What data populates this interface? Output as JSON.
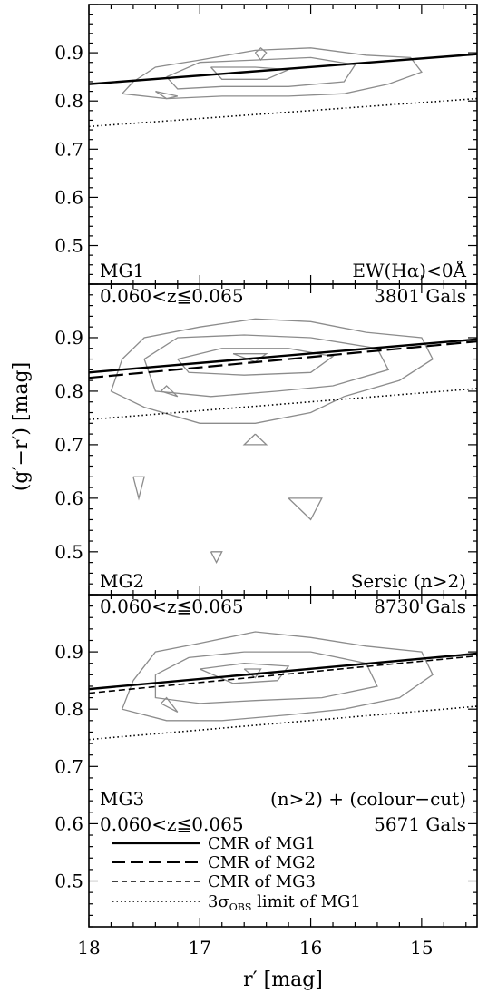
{
  "chart_data": [
    {
      "type": "line",
      "panel_label": "MG1",
      "redshift_label": "0.060<z≦0.065",
      "selection_label": "EW(Hα)<0Å",
      "count_label": "3801 Gals",
      "xlim": [
        18,
        14.5
      ],
      "ylim": [
        0.42,
        1.0
      ],
      "x_ticks": [
        "18",
        "17",
        "16",
        "15"
      ],
      "y_ticks": [
        "0.5",
        "0.6",
        "0.7",
        "0.8",
        "0.9"
      ],
      "series": [
        {
          "kind": "CMR of MG1",
          "style": "solid",
          "x": [
            18,
            14.5
          ],
          "y": [
            0.835,
            0.897
          ]
        },
        {
          "kind": "3σ limit",
          "style": "dotted",
          "x": [
            18,
            14.5
          ],
          "y": [
            0.747,
            0.805
          ]
        }
      ],
      "contours": [
        [
          [
            17.6,
            0.84
          ],
          [
            17.4,
            0.87
          ],
          [
            17.0,
            0.885
          ],
          [
            16.5,
            0.905
          ],
          [
            16.0,
            0.91
          ],
          [
            15.5,
            0.895
          ],
          [
            15.1,
            0.89
          ],
          [
            15.0,
            0.86
          ],
          [
            15.3,
            0.835
          ],
          [
            15.7,
            0.815
          ],
          [
            16.2,
            0.81
          ],
          [
            16.8,
            0.81
          ],
          [
            17.3,
            0.805
          ],
          [
            17.7,
            0.815
          ],
          [
            17.6,
            0.84
          ]
        ],
        [
          [
            17.3,
            0.85
          ],
          [
            17.0,
            0.88
          ],
          [
            16.5,
            0.885
          ],
          [
            16.0,
            0.89
          ],
          [
            15.6,
            0.875
          ],
          [
            15.7,
            0.84
          ],
          [
            16.2,
            0.83
          ],
          [
            16.8,
            0.83
          ],
          [
            17.2,
            0.825
          ],
          [
            17.3,
            0.85
          ]
        ],
        [
          [
            16.9,
            0.87
          ],
          [
            16.5,
            0.87
          ],
          [
            16.2,
            0.865
          ],
          [
            16.4,
            0.845
          ],
          [
            16.8,
            0.845
          ],
          [
            16.9,
            0.87
          ]
        ],
        [
          [
            17.4,
            0.82
          ],
          [
            17.2,
            0.81
          ],
          [
            17.3,
            0.805
          ],
          [
            17.4,
            0.82
          ]
        ],
        [
          [
            16.5,
            0.9
          ],
          [
            16.45,
            0.885
          ],
          [
            16.4,
            0.9
          ],
          [
            16.45,
            0.91
          ],
          [
            16.5,
            0.9
          ]
        ]
      ]
    },
    {
      "type": "line",
      "panel_label": "MG2",
      "redshift_label": "0.060<z≦0.065",
      "selection_label": "Sersic (n>2)",
      "count_label": "8730 Gals",
      "xlim": [
        18,
        14.5
      ],
      "ylim": [
        0.42,
        1.0
      ],
      "x_ticks": [
        "18",
        "17",
        "16",
        "15"
      ],
      "y_ticks": [
        "0.5",
        "0.6",
        "0.7",
        "0.8",
        "0.9"
      ],
      "series": [
        {
          "kind": "CMR of MG1",
          "style": "solid",
          "x": [
            18,
            14.5
          ],
          "y": [
            0.835,
            0.897
          ]
        },
        {
          "kind": "CMR of MG2",
          "style": "longdash",
          "x": [
            18,
            14.5
          ],
          "y": [
            0.825,
            0.893
          ]
        },
        {
          "kind": "3σ limit",
          "style": "dotted",
          "x": [
            18,
            14.5
          ],
          "y": [
            0.747,
            0.805
          ]
        }
      ],
      "contours": [
        [
          [
            17.7,
            0.86
          ],
          [
            17.5,
            0.9
          ],
          [
            17.0,
            0.92
          ],
          [
            16.5,
            0.935
          ],
          [
            16.0,
            0.93
          ],
          [
            15.5,
            0.91
          ],
          [
            15.0,
            0.9
          ],
          [
            14.9,
            0.86
          ],
          [
            15.2,
            0.82
          ],
          [
            15.7,
            0.79
          ],
          [
            16.0,
            0.76
          ],
          [
            16.5,
            0.74
          ],
          [
            17.0,
            0.74
          ],
          [
            17.5,
            0.77
          ],
          [
            17.8,
            0.8
          ],
          [
            17.7,
            0.86
          ]
        ],
        [
          [
            17.5,
            0.86
          ],
          [
            17.2,
            0.9
          ],
          [
            16.6,
            0.905
          ],
          [
            16.0,
            0.9
          ],
          [
            15.4,
            0.88
          ],
          [
            15.3,
            0.84
          ],
          [
            15.8,
            0.81
          ],
          [
            16.3,
            0.8
          ],
          [
            16.9,
            0.79
          ],
          [
            17.4,
            0.8
          ],
          [
            17.5,
            0.86
          ]
        ],
        [
          [
            17.2,
            0.86
          ],
          [
            16.8,
            0.88
          ],
          [
            16.2,
            0.88
          ],
          [
            15.8,
            0.865
          ],
          [
            16.0,
            0.835
          ],
          [
            16.6,
            0.83
          ],
          [
            17.1,
            0.835
          ],
          [
            17.2,
            0.86
          ]
        ],
        [
          [
            16.7,
            0.87
          ],
          [
            16.4,
            0.87
          ],
          [
            16.5,
            0.855
          ],
          [
            16.7,
            0.87
          ]
        ],
        [
          [
            17.35,
            0.8
          ],
          [
            17.2,
            0.79
          ],
          [
            17.3,
            0.81
          ],
          [
            17.35,
            0.8
          ]
        ],
        [
          [
            16.5,
            0.72
          ],
          [
            16.4,
            0.7
          ],
          [
            16.6,
            0.7
          ],
          [
            16.5,
            0.72
          ]
        ],
        [
          [
            17.6,
            0.64
          ],
          [
            17.55,
            0.6
          ],
          [
            17.5,
            0.64
          ],
          [
            17.6,
            0.64
          ]
        ],
        [
          [
            16.2,
            0.6
          ],
          [
            16.0,
            0.56
          ],
          [
            15.9,
            0.6
          ],
          [
            16.2,
            0.6
          ]
        ],
        [
          [
            16.9,
            0.5
          ],
          [
            16.85,
            0.48
          ],
          [
            16.8,
            0.5
          ],
          [
            16.9,
            0.5
          ]
        ]
      ]
    },
    {
      "type": "line",
      "panel_label": "MG3",
      "redshift_label": "0.060<z≦0.065",
      "selection_label": "(n>2) + (colour−cut)",
      "count_label": "5671 Gals",
      "xlim": [
        18,
        14.5
      ],
      "ylim": [
        0.42,
        1.0
      ],
      "x_ticks": [
        "18",
        "17",
        "16",
        "15"
      ],
      "y_ticks": [
        "0.5",
        "0.6",
        "0.7",
        "0.8",
        "0.9"
      ],
      "series": [
        {
          "kind": "CMR of MG1",
          "style": "solid",
          "x": [
            18,
            14.5
          ],
          "y": [
            0.835,
            0.897
          ]
        },
        {
          "kind": "CMR of MG3",
          "style": "shortdash",
          "x": [
            18,
            14.5
          ],
          "y": [
            0.828,
            0.893
          ]
        },
        {
          "kind": "3σ limit",
          "style": "dotted",
          "x": [
            18,
            14.5
          ],
          "y": [
            0.747,
            0.805
          ]
        }
      ],
      "contours": [
        [
          [
            17.6,
            0.85
          ],
          [
            17.4,
            0.9
          ],
          [
            17.0,
            0.915
          ],
          [
            16.5,
            0.935
          ],
          [
            16.0,
            0.925
          ],
          [
            15.5,
            0.91
          ],
          [
            15.0,
            0.9
          ],
          [
            14.9,
            0.86
          ],
          [
            15.2,
            0.82
          ],
          [
            15.7,
            0.8
          ],
          [
            16.2,
            0.79
          ],
          [
            16.8,
            0.78
          ],
          [
            17.3,
            0.78
          ],
          [
            17.7,
            0.8
          ],
          [
            17.6,
            0.85
          ]
        ],
        [
          [
            17.4,
            0.86
          ],
          [
            17.1,
            0.89
          ],
          [
            16.6,
            0.9
          ],
          [
            16.0,
            0.9
          ],
          [
            15.5,
            0.88
          ],
          [
            15.4,
            0.84
          ],
          [
            15.9,
            0.82
          ],
          [
            16.5,
            0.815
          ],
          [
            17.0,
            0.81
          ],
          [
            17.4,
            0.82
          ],
          [
            17.4,
            0.86
          ]
        ],
        [
          [
            17.0,
            0.87
          ],
          [
            16.6,
            0.88
          ],
          [
            16.2,
            0.875
          ],
          [
            16.3,
            0.85
          ],
          [
            16.7,
            0.845
          ],
          [
            17.0,
            0.87
          ]
        ],
        [
          [
            17.35,
            0.81
          ],
          [
            17.2,
            0.795
          ],
          [
            17.3,
            0.82
          ],
          [
            17.35,
            0.81
          ]
        ],
        [
          [
            16.6,
            0.87
          ],
          [
            16.5,
            0.855
          ],
          [
            16.45,
            0.87
          ],
          [
            16.6,
            0.87
          ]
        ]
      ]
    }
  ],
  "legend": {
    "items": [
      {
        "label": "CMR of MG1",
        "style": "solid"
      },
      {
        "label": "CMR of MG2",
        "style": "longdash"
      },
      {
        "label": "CMR of MG3",
        "style": "shortdash"
      },
      {
        "label": "3σ",
        "sub": "OBS",
        "suffix": " limit of MG1",
        "style": "dotted"
      }
    ]
  },
  "axes": {
    "xlabel": "r′ [mag]",
    "ylabel": "(g′−r′) [mag]"
  },
  "colors": {
    "contour": "#8c8c8c",
    "line": "#000000"
  }
}
